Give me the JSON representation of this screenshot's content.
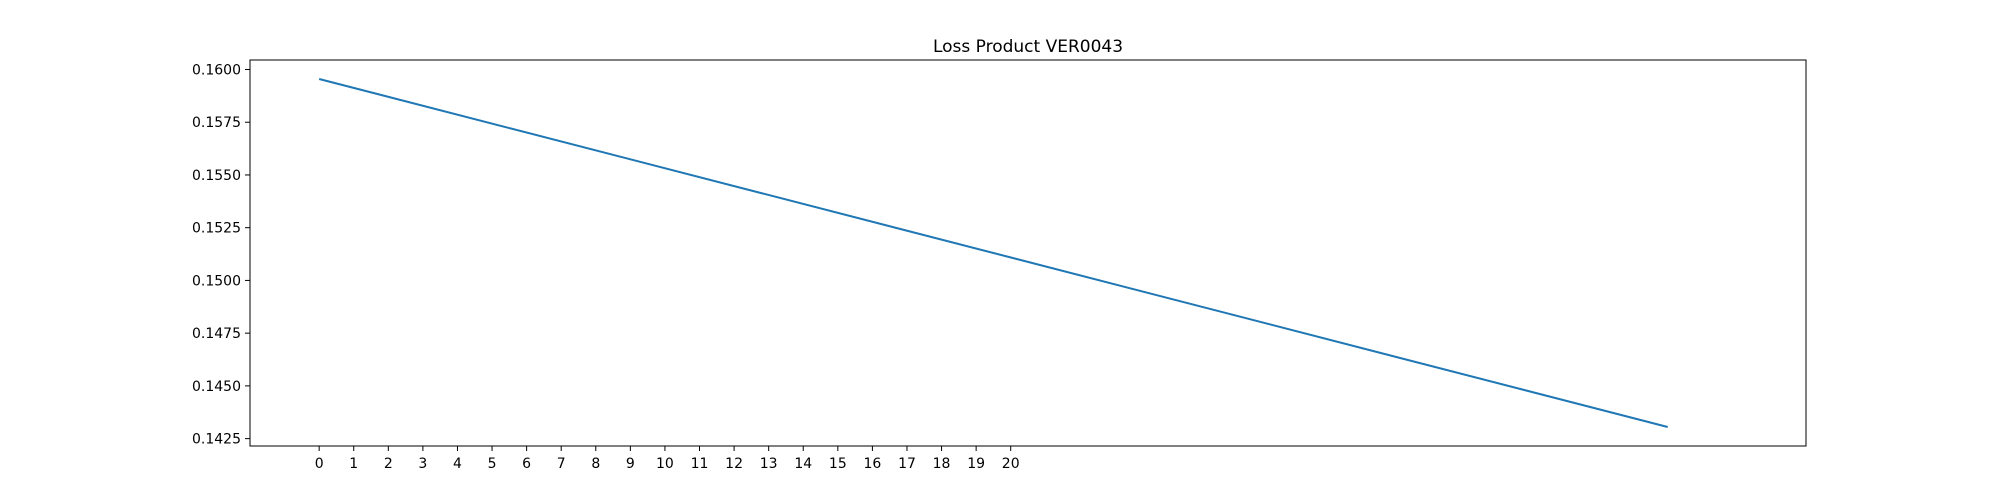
{
  "chart_data": {
    "type": "line",
    "title": "Loss Product VER0043",
    "xlabel": "",
    "ylabel": "",
    "x_ticks": [
      "0",
      "1",
      "2",
      "3",
      "4",
      "5",
      "6",
      "7",
      "8",
      "9",
      "10",
      "11",
      "12",
      "13",
      "14",
      "15",
      "16",
      "17",
      "18",
      "19",
      "20"
    ],
    "y_ticks": [
      "0.1425",
      "0.1450",
      "0.1475",
      "0.1500",
      "0.1525",
      "0.1550",
      "0.1575",
      "0.1600"
    ],
    "xlim": [
      -2,
      43
    ],
    "ylim": [
      0.14215,
      0.16045
    ],
    "grid": false,
    "series": [
      {
        "color": "#1f77b4",
        "x": [
          0,
          39
        ],
        "y": [
          0.15955,
          0.14305
        ]
      }
    ]
  }
}
